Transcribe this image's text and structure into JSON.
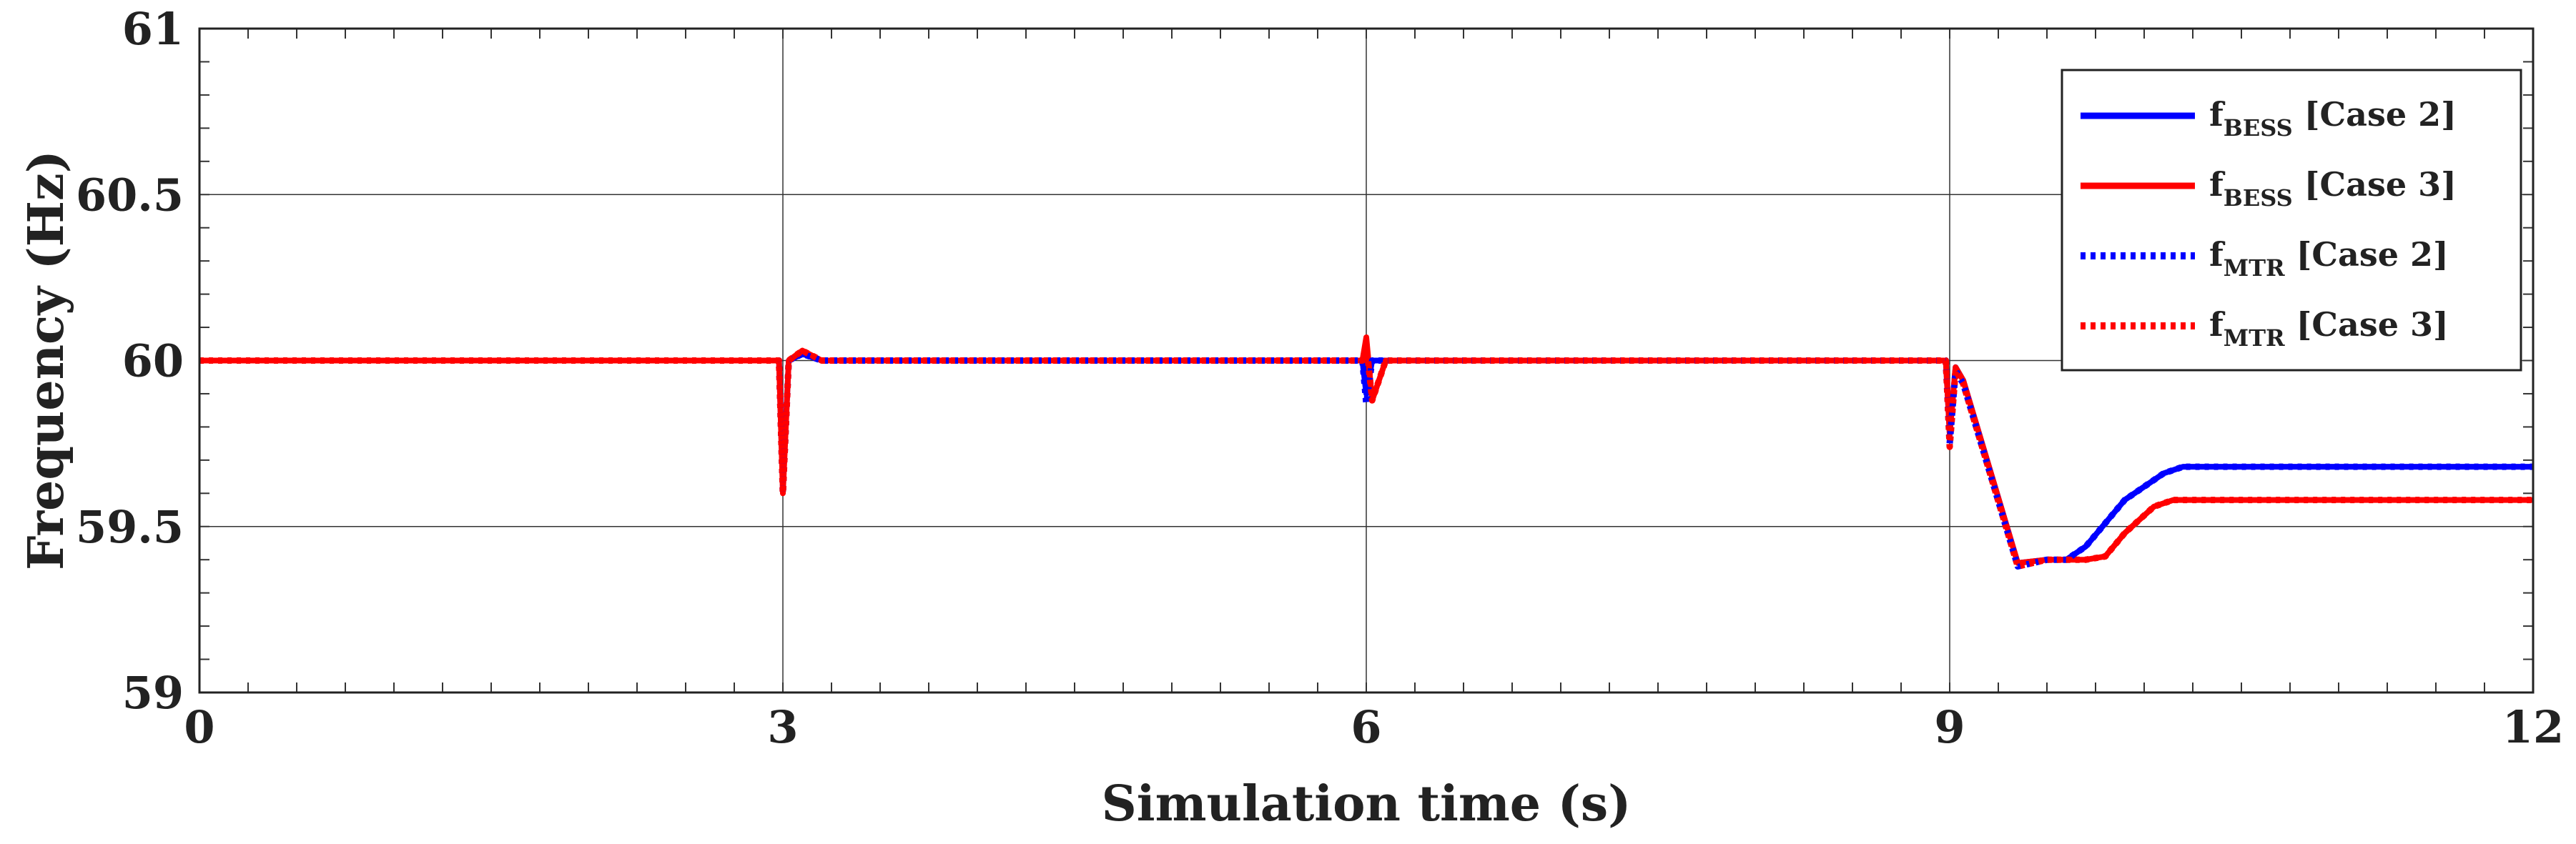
{
  "chart_data": {
    "type": "line",
    "xlabel": "Simulation time (s)",
    "ylabel": "Frequency (Hz)",
    "xlim": [
      0,
      12
    ],
    "ylim": [
      59,
      61
    ],
    "xticks": [
      0,
      3,
      6,
      9,
      12
    ],
    "yticks": [
      59,
      59.5,
      60,
      60.5,
      61
    ],
    "xtick_labels": [
      "0",
      "3",
      "6",
      "9",
      "12"
    ],
    "ytick_labels": [
      "59",
      "59.5",
      "60",
      "60.5",
      "61"
    ],
    "grid": true,
    "legend_position": "top-right",
    "series": [
      {
        "name": "f_BESS [Case 2]",
        "legend_main": "f",
        "legend_sub": "BESS",
        "legend_suffix": " [Case 2]",
        "color": "#0000ff",
        "style": "solid",
        "x": [
          0,
          2.98,
          3.0,
          3.03,
          3.1,
          3.2,
          5.98,
          6.0,
          6.03,
          6.1,
          8.98,
          9.0,
          9.03,
          9.07,
          9.35,
          9.5,
          9.6,
          9.7,
          9.9,
          10.1,
          10.2,
          12
        ],
        "y": [
          60.0,
          60.0,
          59.62,
          60.0,
          60.02,
          60.0,
          60.0,
          59.9,
          60.0,
          60.0,
          60.0,
          59.78,
          59.98,
          59.94,
          59.39,
          59.4,
          59.4,
          59.44,
          59.58,
          59.66,
          59.68,
          59.68
        ]
      },
      {
        "name": "f_BESS [Case 3]",
        "legend_main": "f",
        "legend_sub": "BESS",
        "legend_suffix": " [Case 3]",
        "color": "#ff0000",
        "style": "solid",
        "x": [
          0,
          2.98,
          3.0,
          3.03,
          3.1,
          3.2,
          5.98,
          6.0,
          6.03,
          6.1,
          8.98,
          9.0,
          9.03,
          9.07,
          9.35,
          9.5,
          9.7,
          9.8,
          9.9,
          10.05,
          10.15,
          12
        ],
        "y": [
          60.0,
          60.0,
          59.6,
          60.0,
          60.03,
          60.0,
          60.0,
          60.07,
          59.88,
          60.0,
          60.0,
          59.78,
          59.98,
          59.94,
          59.39,
          59.4,
          59.4,
          59.41,
          59.48,
          59.56,
          59.58,
          59.58
        ]
      },
      {
        "name": "f_MTR [Case 2]",
        "legend_main": "f",
        "legend_sub": "MTR",
        "legend_suffix": " [Case 2]",
        "color": "#0000ff",
        "style": "dotted",
        "x": [
          0,
          2.98,
          3.0,
          3.03,
          3.1,
          3.2,
          5.98,
          6.0,
          6.03,
          6.1,
          8.98,
          9.0,
          9.03,
          9.07,
          9.35,
          9.5,
          9.6,
          9.7,
          9.9,
          10.1,
          10.2,
          12
        ],
        "y": [
          60.0,
          60.0,
          59.6,
          60.0,
          60.02,
          60.0,
          60.0,
          59.87,
          60.0,
          60.0,
          60.0,
          59.75,
          59.97,
          59.93,
          59.38,
          59.4,
          59.4,
          59.44,
          59.58,
          59.66,
          59.68,
          59.68
        ]
      },
      {
        "name": "f_MTR [Case 3]",
        "legend_main": "f",
        "legend_sub": "MTR",
        "legend_suffix": " [Case 3]",
        "color": "#ff0000",
        "style": "dotted",
        "x": [
          0,
          2.98,
          3.0,
          3.03,
          3.1,
          3.2,
          5.98,
          6.0,
          6.03,
          6.1,
          8.98,
          9.0,
          9.03,
          9.07,
          9.35,
          9.5,
          9.7,
          9.8,
          9.9,
          10.05,
          10.15,
          12
        ],
        "y": [
          60.0,
          60.0,
          59.6,
          60.0,
          60.03,
          60.0,
          60.0,
          60.05,
          59.88,
          60.0,
          60.0,
          59.74,
          59.97,
          59.93,
          59.38,
          59.4,
          59.4,
          59.41,
          59.48,
          59.56,
          59.58,
          59.58
        ]
      }
    ]
  }
}
